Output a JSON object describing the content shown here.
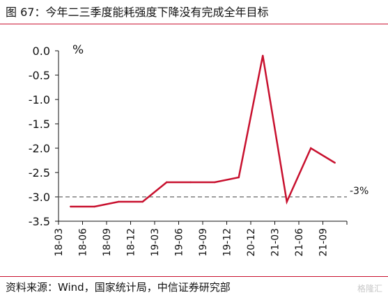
{
  "header": {
    "title": "图 67：今年二三季度能耗强度下降没有完成全年目标"
  },
  "footer": {
    "source": "资料来源：Wind，国家统计局，中信证券研究部",
    "watermark": "格隆汇"
  },
  "chart_data": {
    "type": "line",
    "title": "图 67：今年二三季度能耗强度下降没有完成全年目标",
    "ylabel": "%",
    "xlabel": "",
    "ylim": [
      -3.5,
      0.0
    ],
    "yticks": [
      0.0,
      -0.5,
      -1.0,
      -1.5,
      -2.0,
      -2.5,
      -3.0,
      -3.5
    ],
    "ytick_labels": [
      "0.0",
      "-0.5",
      "-1.0",
      "-1.5",
      "-2.0",
      "-2.5",
      "-3.0",
      "-3.5"
    ],
    "x": [
      "18-03",
      "18-06",
      "18-09",
      "18-12",
      "19-03",
      "19-06",
      "19-09",
      "19-12",
      "20-12",
      "21-03",
      "21-06",
      "21-09"
    ],
    "x_points": [
      "18-03",
      "18-06",
      "18-09",
      "18-12",
      "19-03",
      "19-06",
      "19-09",
      "19-12",
      "20-12",
      "21-03",
      "21-06",
      "21-09"
    ],
    "series": [
      {
        "values": [
          -3.2,
          -3.2,
          -3.1,
          -3.1,
          -2.7,
          -2.7,
          -2.7,
          -2.6,
          -0.1,
          -3.1,
          -2.0,
          -2.3
        ],
        "color": "#c8102e"
      }
    ],
    "reference_line": {
      "value": -3.0,
      "label": "-3%",
      "style": "dashed",
      "color": "#7f7f7f"
    },
    "grid": false,
    "legend": "none"
  }
}
